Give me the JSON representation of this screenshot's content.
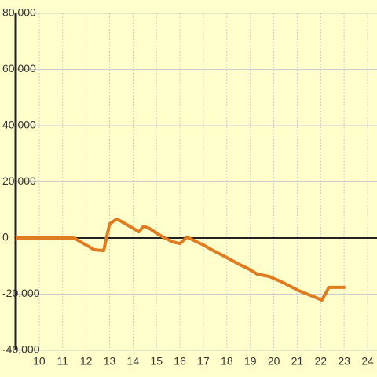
{
  "chart_data": {
    "type": "line",
    "x": [
      9,
      11.5,
      11.7,
      12,
      12.35,
      12.75,
      13,
      13.3,
      13.5,
      13.85,
      14.25,
      14.45,
      14.7,
      15,
      15.35,
      15.7,
      16,
      16.3,
      16.65,
      17,
      17.35,
      18,
      18.55,
      18.9,
      19.3,
      19.8,
      20.4,
      21.05,
      21.55,
      22.05,
      22.35,
      23.05
    ],
    "series": [
      {
        "color": "#e07b20",
        "values": [
          0,
          0,
          -1100,
          -2500,
          -4200,
          -4500,
          5000,
          6700,
          5900,
          4200,
          2200,
          4200,
          3400,
          1700,
          0,
          -1400,
          -2000,
          300,
          -1100,
          -2500,
          -4200,
          -7000,
          -9500,
          -10900,
          -12900,
          -13700,
          -15900,
          -18700,
          -20400,
          -22100,
          -17600,
          -17600
        ]
      }
    ],
    "xlim": [
      9,
      24.4
    ],
    "xticks": [
      10,
      11,
      12,
      13,
      14,
      15,
      16,
      17,
      18,
      19,
      20,
      21,
      22,
      23,
      24
    ],
    "ylim": [
      -40000,
      80000
    ],
    "yticks": [
      {
        "value": -40000,
        "label": "-40,000"
      },
      {
        "value": -20000,
        "label": "-20,000"
      },
      {
        "value": 0,
        "label": "0"
      },
      {
        "value": 20000,
        "label": "20,000"
      },
      {
        "value": 40000,
        "label": "40,000"
      },
      {
        "value": 60000,
        "label": "60,000"
      },
      {
        "value": 80000,
        "label": "80,000"
      }
    ],
    "grid": true
  }
}
